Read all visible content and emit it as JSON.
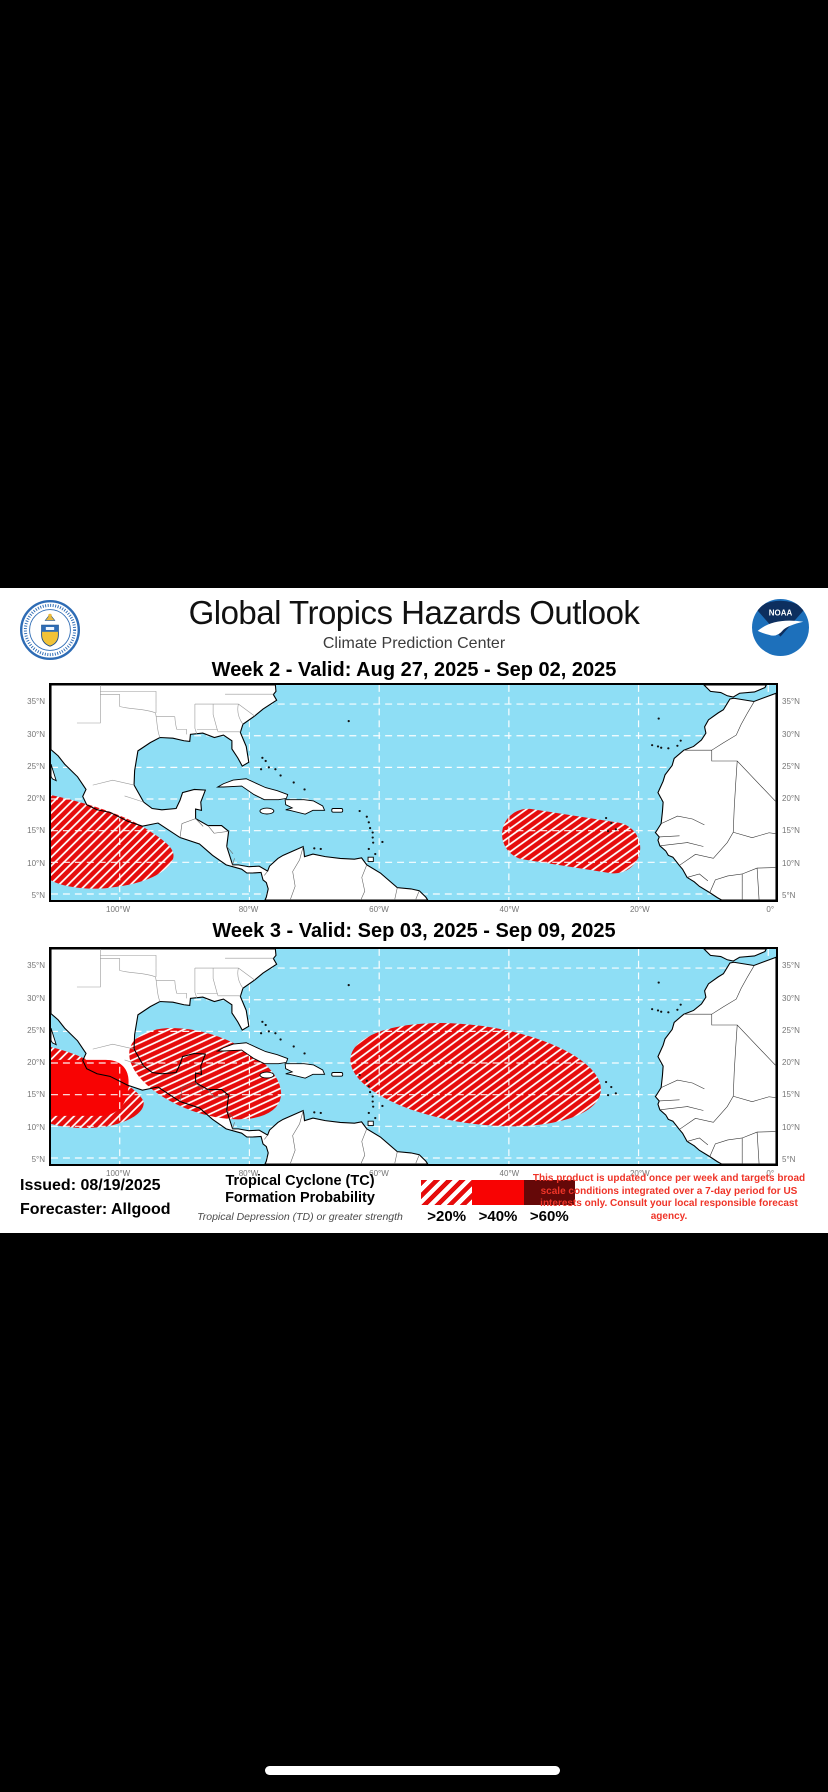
{
  "header": {
    "title": "Global Tropics Hazards Outlook",
    "subtitle": "Climate Prediction Center",
    "noaa_logo_text": "NOAA"
  },
  "maps": [
    {
      "title": "Week 2 - Valid: Aug 27, 2025 - Sep 02, 2025",
      "lat_labels": [
        "35°N",
        "30°N",
        "25°N",
        "20°N",
        "15°N",
        "10°N",
        "5°N"
      ],
      "lon_labels": [
        "100°W",
        "80°W",
        "60°W",
        "40°W",
        "20°W",
        "0°"
      ],
      "hazards": [
        {
          "area": "Eastern Pacific off southern Mexico and Central America",
          "category": ">20%",
          "style": "hatched"
        },
        {
          "area": "Central tropical Atlantic",
          "category": ">20%",
          "style": "hatched"
        }
      ]
    },
    {
      "title": "Week 3 - Valid: Sep 03, 2025 - Sep 09, 2025",
      "lat_labels": [
        "35°N",
        "30°N",
        "25°N",
        "20°N",
        "15°N",
        "10°N",
        "5°N"
      ],
      "lon_labels": [
        "100°W",
        "80°W",
        "60°W",
        "40°W",
        "20°W",
        "0°"
      ],
      "hazards": [
        {
          "area": "Eastern Pacific off southern Mexico",
          "category": ">40%",
          "style": "solid"
        },
        {
          "area": "Eastern Pacific surrounding area",
          "category": ">20%",
          "style": "hatched"
        },
        {
          "area": "Bay of Campeche / Gulf of Mexico / northwest Caribbean",
          "category": ">20%",
          "style": "hatched"
        },
        {
          "area": "Central tropical Atlantic main development region",
          "category": ">20%",
          "style": "hatched"
        }
      ]
    }
  ],
  "footer": {
    "issued": "Issued: 08/19/2025",
    "forecaster": "Forecaster: Allgood",
    "legend_title_line1": "Tropical Cyclone (TC)",
    "legend_title_line2": "Formation Probability",
    "legend_subtitle": "Tropical Depression (TD) or greater strength",
    "legend_items": [
      {
        "label": ">20%",
        "style": "hatched"
      },
      {
        "label": ">40%",
        "style": "solid-red"
      },
      {
        "label": ">60%",
        "style": "dark-red"
      }
    ],
    "disclaimer": "This product is updated once per week and targets broad scale conditions integrated over a 7-day period for US interests only. Consult your local responsible forecast agency."
  },
  "colors": {
    "ocean": "#8edef5",
    "hazard_stripe_red": "#e60c0c",
    "solid_red": "#f80303",
    "dark_red": "#650808",
    "disclaimer_red": "#ef3428"
  }
}
